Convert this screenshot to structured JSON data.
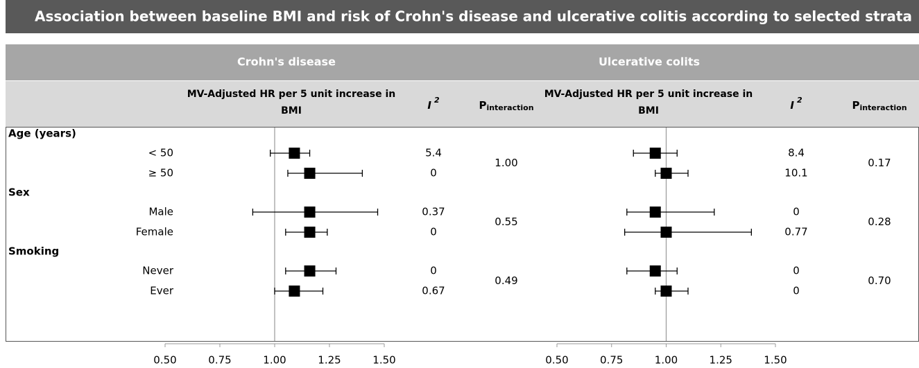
{
  "title": "Association between baseline BMI and risk of Crohn's disease and ulcerative colitis according to selected strata",
  "strata": [
    {
      "label": "Age (years)",
      "levels": [
        "< 50",
        "≥ 50"
      ]
    },
    {
      "label": "Sex",
      "levels": [
        "Male",
        "Female"
      ]
    },
    {
      "label": "Smoking",
      "levels": [
        "Never",
        "Ever"
      ]
    }
  ],
  "chart_data": [
    {
      "type": "forest",
      "title": "Crohn's disease",
      "estimate_header": "MV-Adjusted HR per 5 unit increase in BMI",
      "i2_header": {
        "text": "I",
        "sup": "2"
      },
      "p_header": {
        "text": "P",
        "sub": "interaction"
      },
      "values": [
        1.09,
        1.16,
        1.16,
        1.16,
        1.16,
        1.09
      ],
      "lower": [
        0.98,
        1.06,
        0.9,
        1.05,
        1.05,
        1.0
      ],
      "upper": [
        1.16,
        1.4,
        1.47,
        1.24,
        1.28,
        1.22
      ],
      "i2": [
        "5.4",
        "0",
        "0.37",
        "0",
        "0",
        "0.67"
      ],
      "p_interaction": [
        "1.00",
        "0.55",
        "0.49"
      ],
      "reference": 1,
      "xlim": [
        0.5,
        1.5
      ],
      "xticks": [
        {
          "value": 0.5,
          "label": "0.50"
        },
        {
          "value": 0.75,
          "label": "0.75"
        },
        {
          "value": 1,
          "label": "1.00"
        },
        {
          "value": 1.25,
          "label": "1.25"
        },
        {
          "value": 1.5,
          "label": "1.50"
        }
      ],
      "color": "#000000"
    },
    {
      "type": "forest",
      "title": "Ulcerative colits",
      "estimate_header": "MV-Adjusted HR per 5 unit increase in BMI",
      "i2_header": {
        "text": "I",
        "sup": "2"
      },
      "p_header": {
        "text": "P",
        "sub": "interaction"
      },
      "values": [
        0.95,
        1.0,
        0.95,
        1.0,
        0.95,
        1.0
      ],
      "lower": [
        0.85,
        0.95,
        0.82,
        0.81,
        0.82,
        0.95
      ],
      "upper": [
        1.05,
        1.1,
        1.22,
        1.39,
        1.05,
        1.1
      ],
      "i2": [
        "8.4",
        "10.1",
        "0",
        "0.77",
        "0",
        "0"
      ],
      "p_interaction": [
        "0.17",
        "0.28",
        "0.70"
      ],
      "reference": 1,
      "xlim": [
        0.5,
        1.5
      ],
      "xticks": [
        {
          "value": 0.5,
          "label": "0.50"
        },
        {
          "value": 0.75,
          "label": "0.75"
        },
        {
          "value": 1,
          "label": "1.00"
        },
        {
          "value": 1.25,
          "label": "1.25"
        },
        {
          "value": 1.5,
          "label": "1.50"
        }
      ],
      "color": "#000000"
    }
  ]
}
